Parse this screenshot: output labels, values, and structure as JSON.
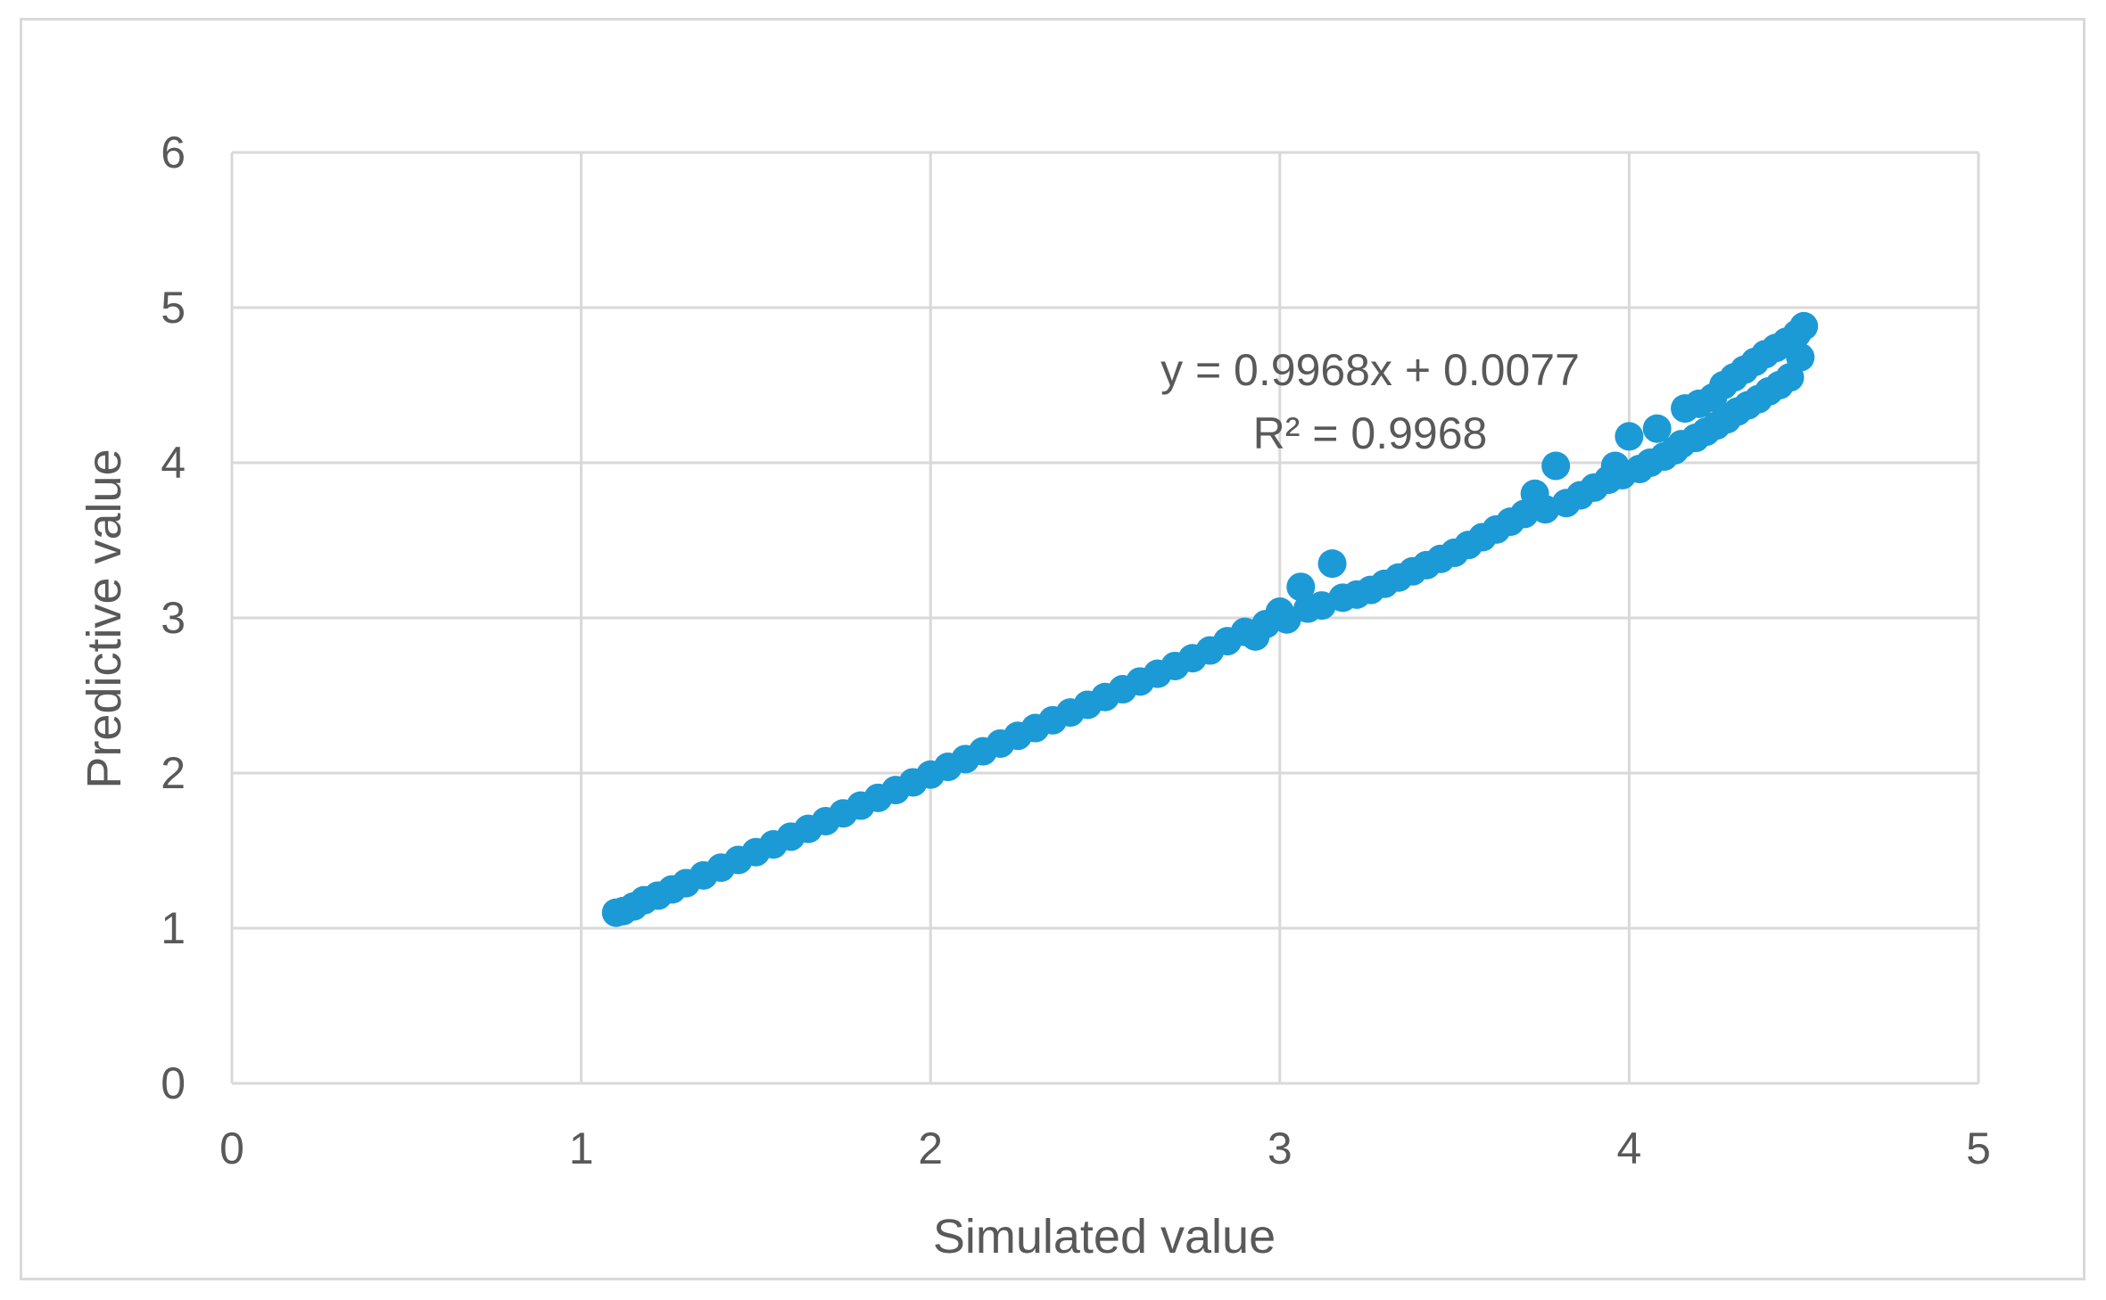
{
  "chart_data": {
    "type": "scatter",
    "xlabel": "Simulated value",
    "ylabel": "Predictive value",
    "xlim": [
      0,
      5
    ],
    "ylim": [
      0,
      6
    ],
    "xticks": [
      "0",
      "1",
      "2",
      "3",
      "4",
      "5"
    ],
    "yticks": [
      "0",
      "1",
      "2",
      "3",
      "4",
      "5",
      "6"
    ],
    "grid": true,
    "marker_color": "#1b9ad6",
    "gridline_color": "#d9d9d9",
    "text_color": "#595959",
    "trendline": {
      "equation": "y = 0.9968x + 0.0077",
      "r_squared": "R² = 0.9968"
    },
    "series": [
      {
        "points": [
          [
            1.1,
            1.1
          ],
          [
            1.12,
            1.11
          ],
          [
            1.15,
            1.14
          ],
          [
            1.18,
            1.18
          ],
          [
            1.22,
            1.21
          ],
          [
            1.26,
            1.25
          ],
          [
            1.3,
            1.29
          ],
          [
            1.35,
            1.34
          ],
          [
            1.4,
            1.39
          ],
          [
            1.45,
            1.44
          ],
          [
            1.5,
            1.49
          ],
          [
            1.55,
            1.54
          ],
          [
            1.6,
            1.59
          ],
          [
            1.65,
            1.64
          ],
          [
            1.7,
            1.69
          ],
          [
            1.75,
            1.74
          ],
          [
            1.8,
            1.79
          ],
          [
            1.85,
            1.84
          ],
          [
            1.9,
            1.89
          ],
          [
            1.95,
            1.94
          ],
          [
            2.0,
            1.99
          ],
          [
            2.05,
            2.04
          ],
          [
            2.1,
            2.09
          ],
          [
            2.15,
            2.14
          ],
          [
            2.2,
            2.19
          ],
          [
            2.25,
            2.24
          ],
          [
            2.3,
            2.29
          ],
          [
            2.35,
            2.34
          ],
          [
            2.4,
            2.39
          ],
          [
            2.45,
            2.44
          ],
          [
            2.5,
            2.49
          ],
          [
            2.55,
            2.54
          ],
          [
            2.6,
            2.59
          ],
          [
            2.65,
            2.64
          ],
          [
            2.7,
            2.69
          ],
          [
            2.75,
            2.74
          ],
          [
            2.8,
            2.79
          ],
          [
            2.85,
            2.85
          ],
          [
            2.9,
            2.91
          ],
          [
            2.93,
            2.88
          ],
          [
            2.96,
            2.96
          ],
          [
            3.0,
            3.04
          ],
          [
            3.02,
            2.99
          ],
          [
            3.06,
            3.2
          ],
          [
            3.08,
            3.06
          ],
          [
            3.12,
            3.08
          ],
          [
            3.15,
            3.35
          ],
          [
            3.18,
            3.13
          ],
          [
            3.22,
            3.15
          ],
          [
            3.26,
            3.18
          ],
          [
            3.3,
            3.22
          ],
          [
            3.34,
            3.26
          ],
          [
            3.38,
            3.3
          ],
          [
            3.42,
            3.34
          ],
          [
            3.46,
            3.38
          ],
          [
            3.5,
            3.42
          ],
          [
            3.54,
            3.47
          ],
          [
            3.58,
            3.52
          ],
          [
            3.62,
            3.57
          ],
          [
            3.66,
            3.62
          ],
          [
            3.7,
            3.67
          ],
          [
            3.73,
            3.8
          ],
          [
            3.76,
            3.7
          ],
          [
            3.79,
            3.98
          ],
          [
            3.82,
            3.74
          ],
          [
            3.86,
            3.79
          ],
          [
            3.9,
            3.84
          ],
          [
            3.94,
            3.89
          ],
          [
            3.96,
            3.98
          ],
          [
            3.98,
            3.92
          ],
          [
            4.0,
            4.17
          ],
          [
            4.03,
            3.96
          ],
          [
            4.06,
            4.0
          ],
          [
            4.08,
            4.22
          ],
          [
            4.1,
            4.04
          ],
          [
            4.13,
            4.08
          ],
          [
            4.15,
            4.12
          ],
          [
            4.16,
            4.35
          ],
          [
            4.19,
            4.16
          ],
          [
            4.2,
            4.38
          ],
          [
            4.22,
            4.2
          ],
          [
            4.24,
            4.42
          ],
          [
            4.25,
            4.24
          ],
          [
            4.27,
            4.5
          ],
          [
            4.28,
            4.28
          ],
          [
            4.3,
            4.55
          ],
          [
            4.31,
            4.33
          ],
          [
            4.33,
            4.6
          ],
          [
            4.34,
            4.37
          ],
          [
            4.36,
            4.65
          ],
          [
            4.37,
            4.41
          ],
          [
            4.39,
            4.7
          ],
          [
            4.4,
            4.46
          ],
          [
            4.42,
            4.74
          ],
          [
            4.43,
            4.5
          ],
          [
            4.45,
            4.78
          ],
          [
            4.46,
            4.55
          ],
          [
            4.48,
            4.83
          ],
          [
            4.49,
            4.68
          ],
          [
            4.5,
            4.88
          ]
        ]
      }
    ]
  }
}
